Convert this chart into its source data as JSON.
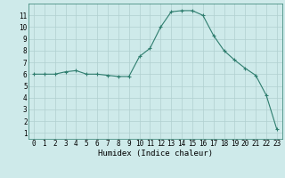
{
  "x": [
    0,
    1,
    2,
    3,
    4,
    5,
    6,
    7,
    8,
    9,
    10,
    11,
    12,
    13,
    14,
    15,
    16,
    17,
    18,
    19,
    20,
    21,
    22,
    23
  ],
  "y": [
    6.0,
    6.0,
    6.0,
    6.2,
    6.3,
    6.0,
    6.0,
    5.9,
    5.8,
    5.8,
    7.5,
    8.2,
    10.0,
    11.3,
    11.4,
    11.4,
    11.0,
    9.3,
    8.0,
    7.2,
    6.5,
    5.9,
    4.2,
    1.3
  ],
  "xlabel": "Humidex (Indice chaleur)",
  "ylim": [
    0.5,
    12.0
  ],
  "xlim": [
    -0.5,
    23.5
  ],
  "yticks": [
    1,
    2,
    3,
    4,
    5,
    6,
    7,
    8,
    9,
    10,
    11
  ],
  "xticks": [
    0,
    1,
    2,
    3,
    4,
    5,
    6,
    7,
    8,
    9,
    10,
    11,
    12,
    13,
    14,
    15,
    16,
    17,
    18,
    19,
    20,
    21,
    22,
    23
  ],
  "line_color": "#2e7d6e",
  "marker": "+",
  "marker_size": 3,
  "marker_edge_width": 0.8,
  "line_width": 0.8,
  "background_color": "#ceeaea",
  "grid_color": "#b0d0d0",
  "tick_label_fontsize": 5.5,
  "xlabel_fontsize": 6.5,
  "spine_color": "#2e7d6e"
}
